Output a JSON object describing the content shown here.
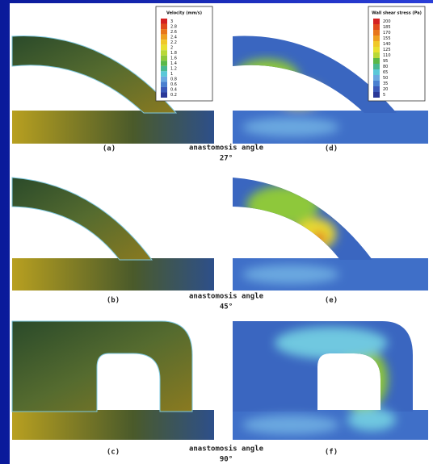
{
  "velocity_legend": {
    "title": "Velocity (mm/s)",
    "labels": [
      "3",
      "2.8",
      "2.6",
      "2.4",
      "2.2",
      "2",
      "1.8",
      "1.6",
      "1.4",
      "1.2",
      "1",
      "0.8",
      "0.6",
      "0.4",
      "0.2"
    ]
  },
  "stress_legend": {
    "title": "Wall shear stress (Pa)",
    "labels": [
      "200",
      "185",
      "170",
      "155",
      "140",
      "125",
      "110",
      "95",
      "80",
      "65",
      "50",
      "35",
      "20",
      "5"
    ]
  },
  "panels": [
    {
      "label": "(a)"
    },
    {
      "label": "(d)"
    },
    {
      "label": "(b)"
    },
    {
      "label": "(e)"
    },
    {
      "label": "(c)"
    },
    {
      "label": "(f)"
    }
  ],
  "captions": [
    {
      "text": "anastomosis angle",
      "angle": "27°"
    },
    {
      "text": "anastomosis angle",
      "angle": "45°"
    },
    {
      "text": "anastomosis angle",
      "angle": "90°"
    }
  ]
}
